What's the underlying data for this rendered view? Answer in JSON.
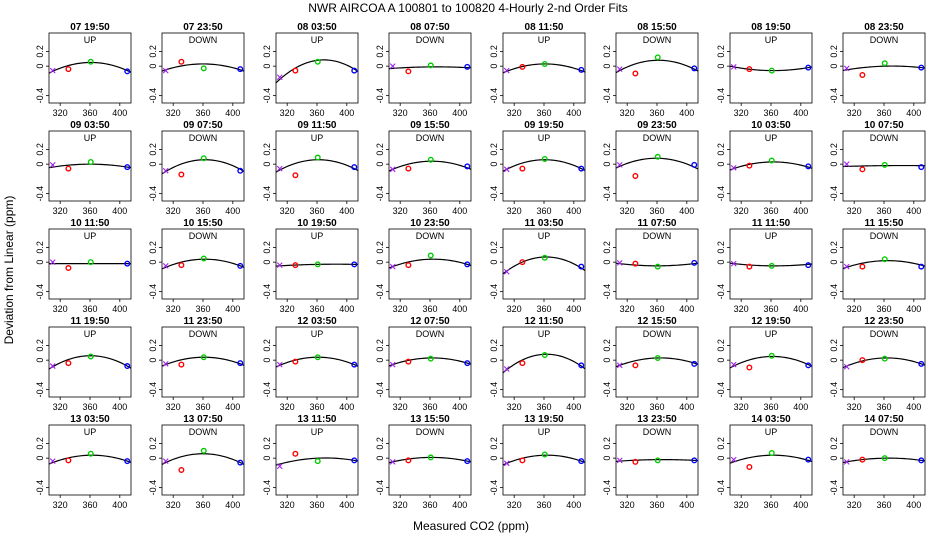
{
  "figure": {
    "title": "NWR   AIRCOA A   100801 to 100820   4-Hourly 2-nd Order Fits",
    "xlabel": "Measured CO2 (ppm)",
    "ylabel": "Deviation from Linear (ppm)"
  },
  "colors": {
    "curve": "#000000",
    "std_ordered": [
      "#a020f0",
      "#ff0000",
      "#00cd00",
      "#0000ff"
    ],
    "marker_kinds": [
      "x",
      "o",
      "o",
      "o"
    ]
  },
  "chart_data": {
    "type": "scatter",
    "title": "NWR   AIRCOA A   100801 to 100820   4-Hourly 2-nd Order Fits",
    "xlabel": "Measured CO2 (ppm)",
    "ylabel": "Deviation from Linear (ppm)",
    "xlim": [
      305,
      415
    ],
    "ylim": [
      -0.5,
      0.45
    ],
    "xticks": [
      320,
      360,
      400
    ],
    "yticks": [
      -0.4,
      0,
      0.2
    ],
    "std_x": [
      310,
      331,
      361,
      410
    ],
    "panels": [
      {
        "time": "07 19:50",
        "dir": "UP",
        "y": [
          -0.06,
          -0.04,
          0.06,
          -0.07
        ],
        "fit": [
          -0.07,
          0.05,
          -0.06
        ]
      },
      {
        "time": "07 23:50",
        "dir": "DOWN",
        "y": [
          -0.06,
          0.06,
          -0.03,
          -0.04
        ],
        "fit": [
          -0.05,
          0.03,
          -0.05
        ]
      },
      {
        "time": "08 03:50",
        "dir": "UP",
        "y": [
          -0.15,
          -0.06,
          0.06,
          -0.06
        ],
        "fit": [
          -0.18,
          0.08,
          -0.04
        ]
      },
      {
        "time": "08 07:50",
        "dir": "DOWN",
        "y": [
          0.0,
          -0.07,
          0.01,
          -0.01
        ],
        "fit": [
          -0.03,
          -0.01,
          -0.02
        ]
      },
      {
        "time": "08 11:50",
        "dir": "UP",
        "y": [
          -0.06,
          -0.01,
          0.03,
          -0.05
        ],
        "fit": [
          -0.07,
          0.03,
          -0.06
        ]
      },
      {
        "time": "08 15:50",
        "dir": "DOWN",
        "y": [
          -0.04,
          -0.1,
          0.12,
          -0.03
        ],
        "fit": [
          -0.06,
          0.08,
          -0.04
        ]
      },
      {
        "time": "08 19:50",
        "dir": "UP",
        "y": [
          -0.01,
          -0.04,
          -0.06,
          -0.02
        ],
        "fit": [
          -0.01,
          -0.06,
          -0.02
        ]
      },
      {
        "time": "08 23:50",
        "dir": "DOWN",
        "y": [
          -0.03,
          -0.12,
          0.04,
          -0.02
        ],
        "fit": [
          -0.05,
          0.0,
          -0.02
        ]
      },
      {
        "time": "09 03:50",
        "dir": "UP",
        "y": [
          -0.01,
          -0.06,
          0.03,
          -0.04
        ],
        "fit": [
          -0.04,
          0.0,
          -0.04
        ]
      },
      {
        "time": "09 07:50",
        "dir": "DOWN",
        "y": [
          -0.09,
          -0.14,
          0.08,
          -0.09
        ],
        "fit": [
          -0.1,
          0.06,
          -0.07
        ]
      },
      {
        "time": "09 11:50",
        "dir": "UP",
        "y": [
          -0.06,
          -0.15,
          0.09,
          -0.04
        ],
        "fit": [
          -0.08,
          0.06,
          -0.06
        ]
      },
      {
        "time": "09 15:50",
        "dir": "DOWN",
        "y": [
          -0.07,
          -0.06,
          0.06,
          -0.03
        ],
        "fit": [
          -0.07,
          0.04,
          -0.05
        ]
      },
      {
        "time": "09 19:50",
        "dir": "UP",
        "y": [
          -0.07,
          -0.06,
          0.07,
          -0.06
        ],
        "fit": [
          -0.07,
          0.06,
          -0.06
        ]
      },
      {
        "time": "09 23:50",
        "dir": "DOWN",
        "y": [
          -0.01,
          -0.16,
          0.1,
          -0.01
        ],
        "fit": [
          -0.03,
          0.08,
          -0.04
        ]
      },
      {
        "time": "10 03:50",
        "dir": "UP",
        "y": [
          -0.05,
          -0.02,
          0.05,
          -0.03
        ],
        "fit": [
          -0.06,
          0.03,
          -0.04
        ]
      },
      {
        "time": "10 07:50",
        "dir": "DOWN",
        "y": [
          0.0,
          -0.07,
          -0.01,
          -0.04
        ],
        "fit": [
          -0.03,
          -0.02,
          -0.02
        ]
      },
      {
        "time": "10 11:50",
        "dir": "UP",
        "y": [
          0.0,
          -0.08,
          0.0,
          -0.02
        ],
        "fit": [
          -0.02,
          -0.02,
          -0.02
        ]
      },
      {
        "time": "10 15:50",
        "dir": "DOWN",
        "y": [
          -0.05,
          -0.04,
          0.05,
          -0.05
        ],
        "fit": [
          -0.07,
          0.04,
          -0.05
        ]
      },
      {
        "time": "10 19:50",
        "dir": "UP",
        "y": [
          -0.04,
          -0.04,
          -0.03,
          -0.03
        ],
        "fit": [
          -0.05,
          -0.03,
          -0.03
        ]
      },
      {
        "time": "10 23:50",
        "dir": "DOWN",
        "y": [
          -0.06,
          -0.04,
          0.09,
          -0.03
        ],
        "fit": [
          -0.06,
          0.04,
          -0.03
        ]
      },
      {
        "time": "11 03:50",
        "dir": "UP",
        "y": [
          -0.13,
          0.0,
          0.06,
          -0.06
        ],
        "fit": [
          -0.12,
          0.07,
          -0.08
        ]
      },
      {
        "time": "11 07:50",
        "dir": "DOWN",
        "y": [
          -0.01,
          -0.02,
          -0.06,
          -0.01
        ],
        "fit": [
          -0.02,
          -0.05,
          -0.02
        ]
      },
      {
        "time": "11 11:50",
        "dir": "UP",
        "y": [
          -0.02,
          -0.06,
          -0.05,
          -0.04
        ],
        "fit": [
          -0.02,
          -0.05,
          -0.03
        ]
      },
      {
        "time": "11 15:50",
        "dir": "DOWN",
        "y": [
          -0.06,
          -0.06,
          0.04,
          -0.06
        ],
        "fit": [
          -0.07,
          0.02,
          -0.04
        ]
      },
      {
        "time": "11 19:50",
        "dir": "UP",
        "y": [
          -0.08,
          -0.04,
          0.05,
          -0.08
        ],
        "fit": [
          -0.09,
          0.06,
          -0.08
        ]
      },
      {
        "time": "11 23:50",
        "dir": "DOWN",
        "y": [
          -0.05,
          -0.06,
          0.04,
          -0.04
        ],
        "fit": [
          -0.06,
          0.04,
          -0.05
        ]
      },
      {
        "time": "12 03:50",
        "dir": "UP",
        "y": [
          -0.06,
          -0.02,
          0.04,
          -0.06
        ],
        "fit": [
          -0.07,
          0.04,
          -0.06
        ]
      },
      {
        "time": "12 07:50",
        "dir": "DOWN",
        "y": [
          -0.06,
          -0.02,
          0.02,
          -0.04
        ],
        "fit": [
          -0.06,
          0.03,
          -0.04
        ]
      },
      {
        "time": "12 11:50",
        "dir": "UP",
        "y": [
          -0.12,
          -0.04,
          0.07,
          -0.07
        ],
        "fit": [
          -0.13,
          0.08,
          -0.08
        ]
      },
      {
        "time": "12 15:50",
        "dir": "DOWN",
        "y": [
          -0.07,
          -0.07,
          0.03,
          -0.05
        ],
        "fit": [
          -0.07,
          0.03,
          -0.04
        ]
      },
      {
        "time": "12 19:50",
        "dir": "UP",
        "y": [
          -0.06,
          -0.1,
          0.06,
          -0.07
        ],
        "fit": [
          -0.08,
          0.05,
          -0.06
        ]
      },
      {
        "time": "12 23:50",
        "dir": "DOWN",
        "y": [
          -0.09,
          0.0,
          0.02,
          -0.05
        ],
        "fit": [
          -0.08,
          0.03,
          -0.05
        ]
      },
      {
        "time": "13 03:50",
        "dir": "UP",
        "y": [
          -0.04,
          -0.03,
          0.06,
          -0.04
        ],
        "fit": [
          -0.06,
          0.04,
          -0.04
        ]
      },
      {
        "time": "13 07:50",
        "dir": "DOWN",
        "y": [
          -0.04,
          -0.16,
          0.1,
          -0.06
        ],
        "fit": [
          -0.06,
          0.06,
          -0.06
        ]
      },
      {
        "time": "13 11:50",
        "dir": "UP",
        "y": [
          -0.11,
          0.06,
          -0.04,
          -0.03
        ],
        "fit": [
          -0.08,
          0.0,
          -0.03
        ]
      },
      {
        "time": "13 15:50",
        "dir": "DOWN",
        "y": [
          -0.05,
          -0.03,
          0.01,
          -0.04
        ],
        "fit": [
          -0.05,
          0.01,
          -0.04
        ]
      },
      {
        "time": "13 19:50",
        "dir": "UP",
        "y": [
          -0.07,
          -0.03,
          0.05,
          -0.04
        ],
        "fit": [
          -0.07,
          0.04,
          -0.04
        ]
      },
      {
        "time": "13 23:50",
        "dir": "DOWN",
        "y": [
          -0.03,
          -0.05,
          -0.03,
          -0.03
        ],
        "fit": [
          -0.04,
          -0.02,
          -0.03
        ]
      },
      {
        "time": "14 03:50",
        "dir": "UP",
        "y": [
          -0.02,
          -0.12,
          0.07,
          -0.02
        ],
        "fit": [
          -0.05,
          0.04,
          -0.03
        ]
      },
      {
        "time": "14 07:50",
        "dir": "DOWN",
        "y": [
          -0.05,
          -0.02,
          0.0,
          -0.03
        ],
        "fit": [
          -0.05,
          0.0,
          -0.03
        ]
      }
    ]
  }
}
